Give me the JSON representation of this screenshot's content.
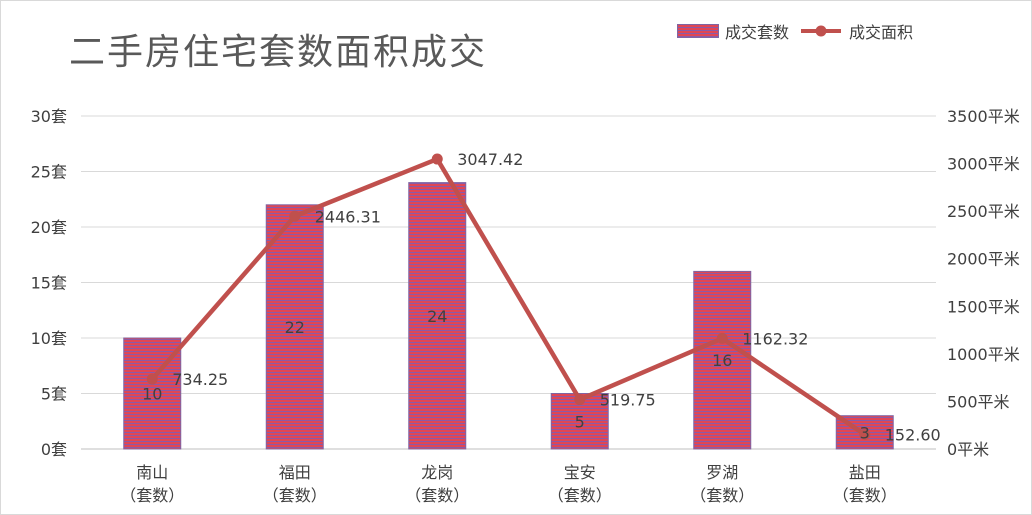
{
  "title": "二手房住宅套数面积成交",
  "legend": {
    "bar": "成交套数",
    "line": "成交面积"
  },
  "colors": {
    "bar_fill": "#e04654",
    "bar_stripe": "#8a5aa8",
    "bar_border": "#8064a2",
    "line": "#c0504d",
    "grid": "#d9d9d9",
    "text": "#404040"
  },
  "chart_data": {
    "type": "bar",
    "title": "二手房住宅套数面积成交",
    "categories": [
      {
        "name": "南山",
        "sub": "（套数）"
      },
      {
        "name": "福田",
        "sub": "（套数）"
      },
      {
        "name": "龙岗",
        "sub": "（套数）"
      },
      {
        "name": "宝安",
        "sub": "（套数）"
      },
      {
        "name": "罗湖",
        "sub": "（套数）"
      },
      {
        "name": "盐田",
        "sub": "（套数）"
      }
    ],
    "series": [
      {
        "name": "成交套数",
        "type": "bar",
        "axis": "left",
        "values": [
          10,
          22,
          24,
          5,
          16,
          3
        ],
        "labels": [
          "10",
          "22",
          "24",
          "5",
          "16",
          "3"
        ]
      },
      {
        "name": "成交面积",
        "type": "line",
        "axis": "right",
        "values": [
          734.25,
          2446.31,
          3047.42,
          519.75,
          1162.32,
          152.6
        ],
        "labels": [
          "734.25",
          "2446.31",
          "3047.42",
          "519.75",
          "1162.32",
          "152.60"
        ]
      }
    ],
    "y_left": {
      "min": 0,
      "max": 30,
      "step": 5,
      "unit": "套",
      "ticks": [
        "0套",
        "5套",
        "10套",
        "15套",
        "20套",
        "25套",
        "30套"
      ]
    },
    "y_right": {
      "min": 0,
      "max": 3500,
      "step": 500,
      "unit": "平米",
      "ticks": [
        "0平米",
        "500平米",
        "1000平米",
        "1500平米",
        "2000平米",
        "2500平米",
        "3000平米",
        "3500平米"
      ]
    },
    "grid": true,
    "legend_position": "top-right"
  }
}
